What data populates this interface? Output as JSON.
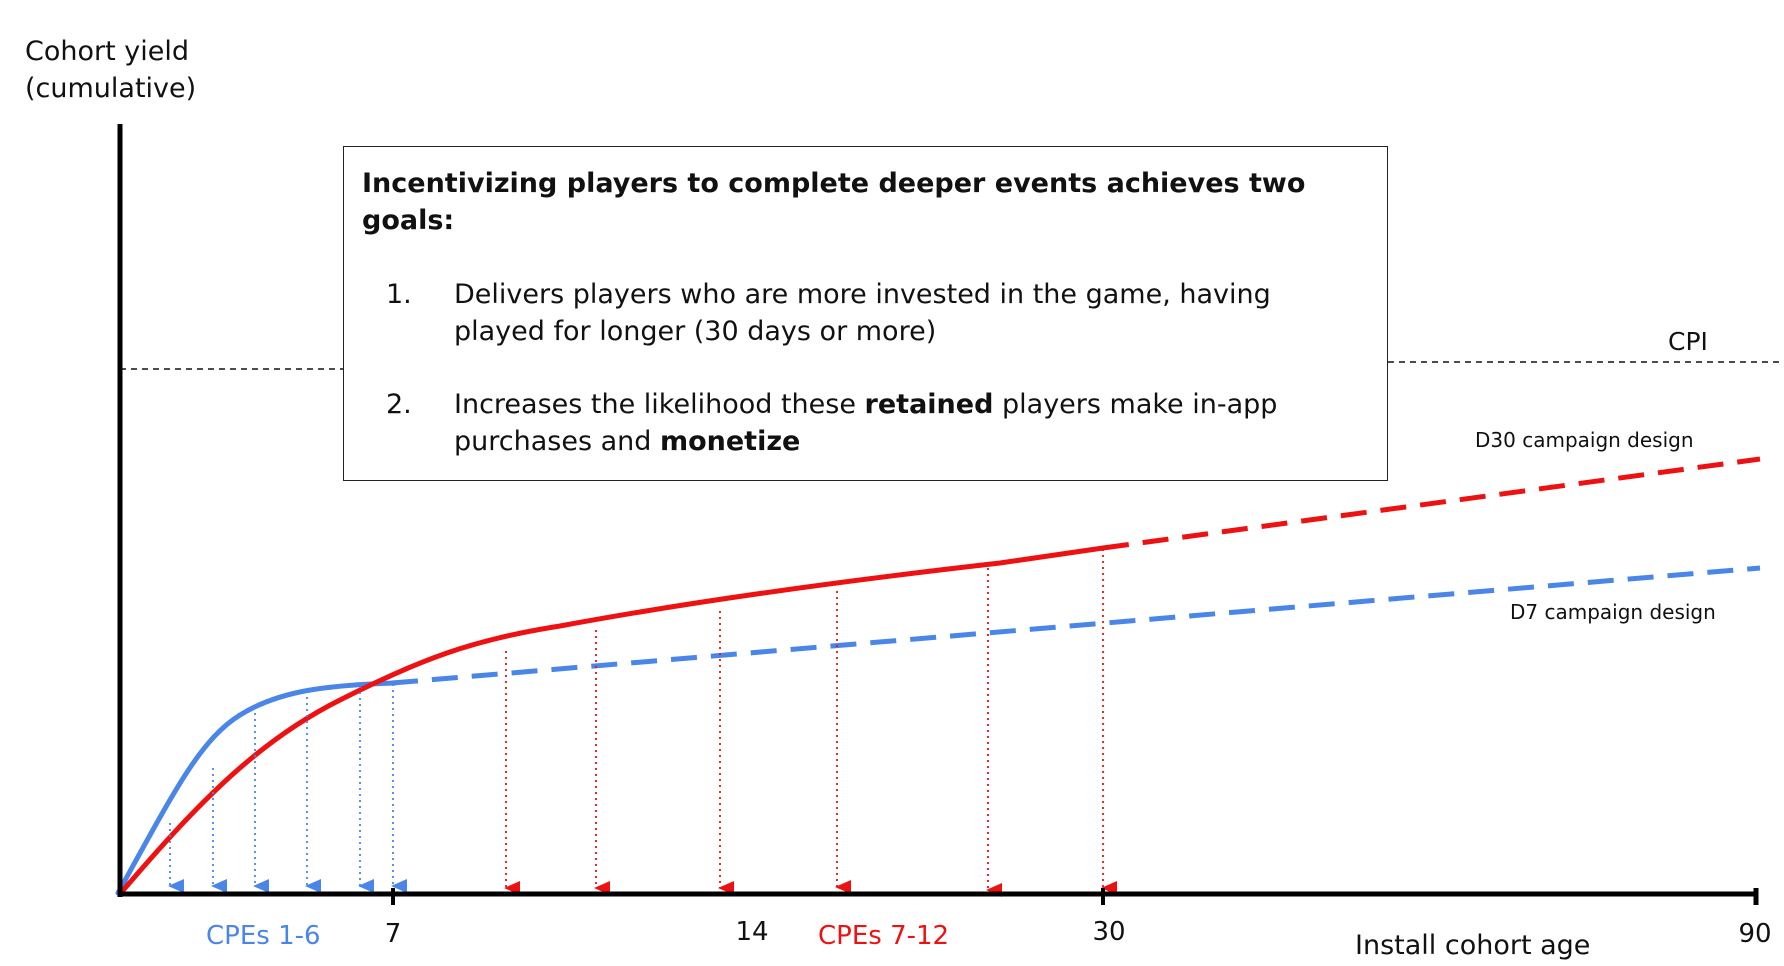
{
  "chart_data": {
    "type": "line",
    "ylabel_lines": [
      "Cohort yield",
      "(cumulative)"
    ],
    "xlabel": "Install cohort age",
    "x_ticks": [
      "7",
      "14",
      "30",
      "90"
    ],
    "grid": false,
    "reference_line": {
      "label": "CPI",
      "style": "dashed"
    },
    "series": [
      {
        "name": "D7 campaign design",
        "color": "#4a86e8",
        "curve": "fast rise to day 7, then dashed slow linear growth to day 90",
        "cpe_group_label": "CPEs 1-6",
        "cpe_count": 6
      },
      {
        "name": "D30 campaign design",
        "color": "#ee1111",
        "curve": "slower rise, overtakes D7 near day 7, solid to day 30, then dashed to day 90",
        "cpe_group_label": "CPEs 7-12",
        "cpe_count": 6
      }
    ],
    "callout": {
      "heading": "Incentivizing players to complete deeper events achieves two goals:",
      "items": [
        {
          "number": "1.",
          "text": "Delivers players who are more invested in the game, having played for longer (30 days or more)"
        },
        {
          "number": "2.",
          "parts": [
            {
              "text": "Increases the likelihood these ",
              "bold": false
            },
            {
              "text": "retained",
              "bold": true
            },
            {
              "text": " players make in-app purchases and ",
              "bold": false
            },
            {
              "text": "monetize",
              "bold": true
            }
          ]
        }
      ]
    }
  }
}
